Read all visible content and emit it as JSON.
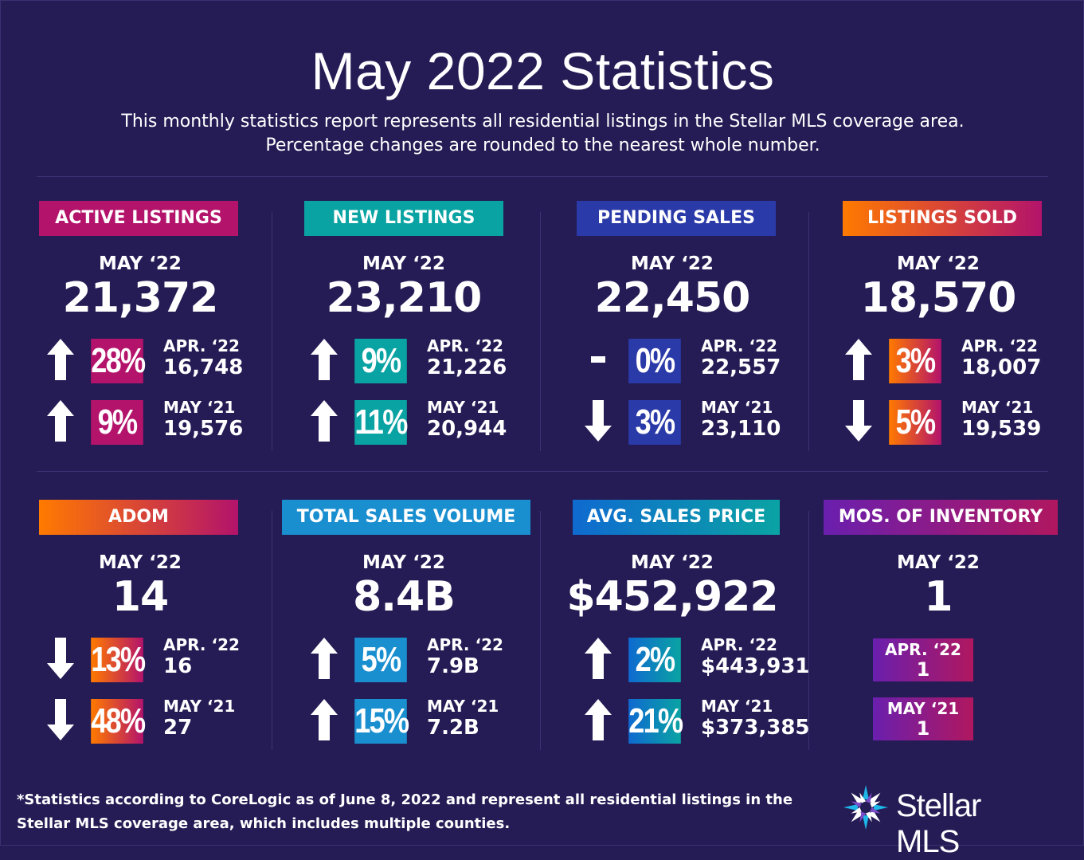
{
  "title": "May 2022 Statistics",
  "subtitle_line1": "This monthly statistics report represents all residential listings in the Stellar MLS coverage area.",
  "subtitle_line2": "Percentage changes are rounded to the nearest whole number.",
  "colors": {
    "background": "#251c55",
    "magenta": "#b3136b",
    "teal": "#0aa3a3",
    "royal_blue": "#2a3aa8",
    "orange_to_magenta": [
      "#ff7a00",
      "#b3136b"
    ],
    "blue_to_teal": [
      "#0f6ad0",
      "#0aa3a3"
    ],
    "cyan_blue": "#1a8fd0",
    "purple_to_magenta": [
      "#6a1fae",
      "#b0175f"
    ]
  },
  "panels": [
    {
      "label": "ACTIVE LISTINGS",
      "period": "MAY ‘22",
      "value": "21,372",
      "rows": [
        {
          "trend": "up",
          "pct": "28%",
          "lbl": "APR. ‘22",
          "val": "16,748"
        },
        {
          "trend": "up",
          "pct": "9%",
          "lbl": "MAY ‘21",
          "val": "19,576"
        }
      ]
    },
    {
      "label": "NEW LISTINGS",
      "period": "MAY ‘22",
      "value": "23,210",
      "rows": [
        {
          "trend": "up",
          "pct": "9%",
          "lbl": "APR. ‘22",
          "val": "21,226"
        },
        {
          "trend": "up",
          "pct": "11%",
          "lbl": "MAY ‘21",
          "val": "20,944"
        }
      ]
    },
    {
      "label": "PENDING SALES",
      "period": "MAY ‘22",
      "value": "22,450",
      "rows": [
        {
          "trend": "flat",
          "pct": "0%",
          "lbl": "APR. ‘22",
          "val": "22,557"
        },
        {
          "trend": "down",
          "pct": "3%",
          "lbl": "MAY ‘21",
          "val": "23,110"
        }
      ]
    },
    {
      "label": "LISTINGS SOLD",
      "period": "MAY ‘22",
      "value": "18,570",
      "rows": [
        {
          "trend": "up",
          "pct": "3%",
          "lbl": "APR. ‘22",
          "val": "18,007"
        },
        {
          "trend": "down",
          "pct": "5%",
          "lbl": "MAY ‘21",
          "val": "19,539"
        }
      ]
    },
    {
      "label": "ADOM",
      "period": "MAY ‘22",
      "value": "14",
      "rows": [
        {
          "trend": "down",
          "pct": "13%",
          "lbl": "APR. ‘22",
          "val": "16"
        },
        {
          "trend": "down",
          "pct": "48%",
          "lbl": "MAY ‘21",
          "val": "27"
        }
      ]
    },
    {
      "label": "TOTAL SALES VOLUME",
      "period": "MAY ‘22",
      "value": "8.4B",
      "rows": [
        {
          "trend": "up",
          "pct": "5%",
          "lbl": "APR. ‘22",
          "val": "7.9B"
        },
        {
          "trend": "up",
          "pct": "15%",
          "lbl": "MAY ‘21",
          "val": "7.2B"
        }
      ]
    },
    {
      "label": "AVG. SALES PRICE",
      "period": "MAY ‘22",
      "value": "$452,922",
      "rows": [
        {
          "trend": "up",
          "pct": "2%",
          "lbl": "APR. ‘22",
          "val": "$443,931"
        },
        {
          "trend": "up",
          "pct": "21%",
          "lbl": "MAY ‘21",
          "val": "$373,385"
        }
      ]
    },
    {
      "label": "MOS. OF INVENTORY",
      "period": "MAY ‘22",
      "value": "1",
      "rows": [
        {
          "lbl": "APR. ‘22",
          "val": "1"
        },
        {
          "lbl": "MAY ‘21",
          "val": "1"
        }
      ]
    }
  ],
  "footnote_line1": "*Statistics according to CoreLogic as of June 8, 2022 and represent all residential listings in the",
  "footnote_line2": "Stellar MLS coverage area, which includes multiple counties.",
  "logo": {
    "text": "Stellar MLS",
    "icon": "starburst-logo-icon"
  }
}
